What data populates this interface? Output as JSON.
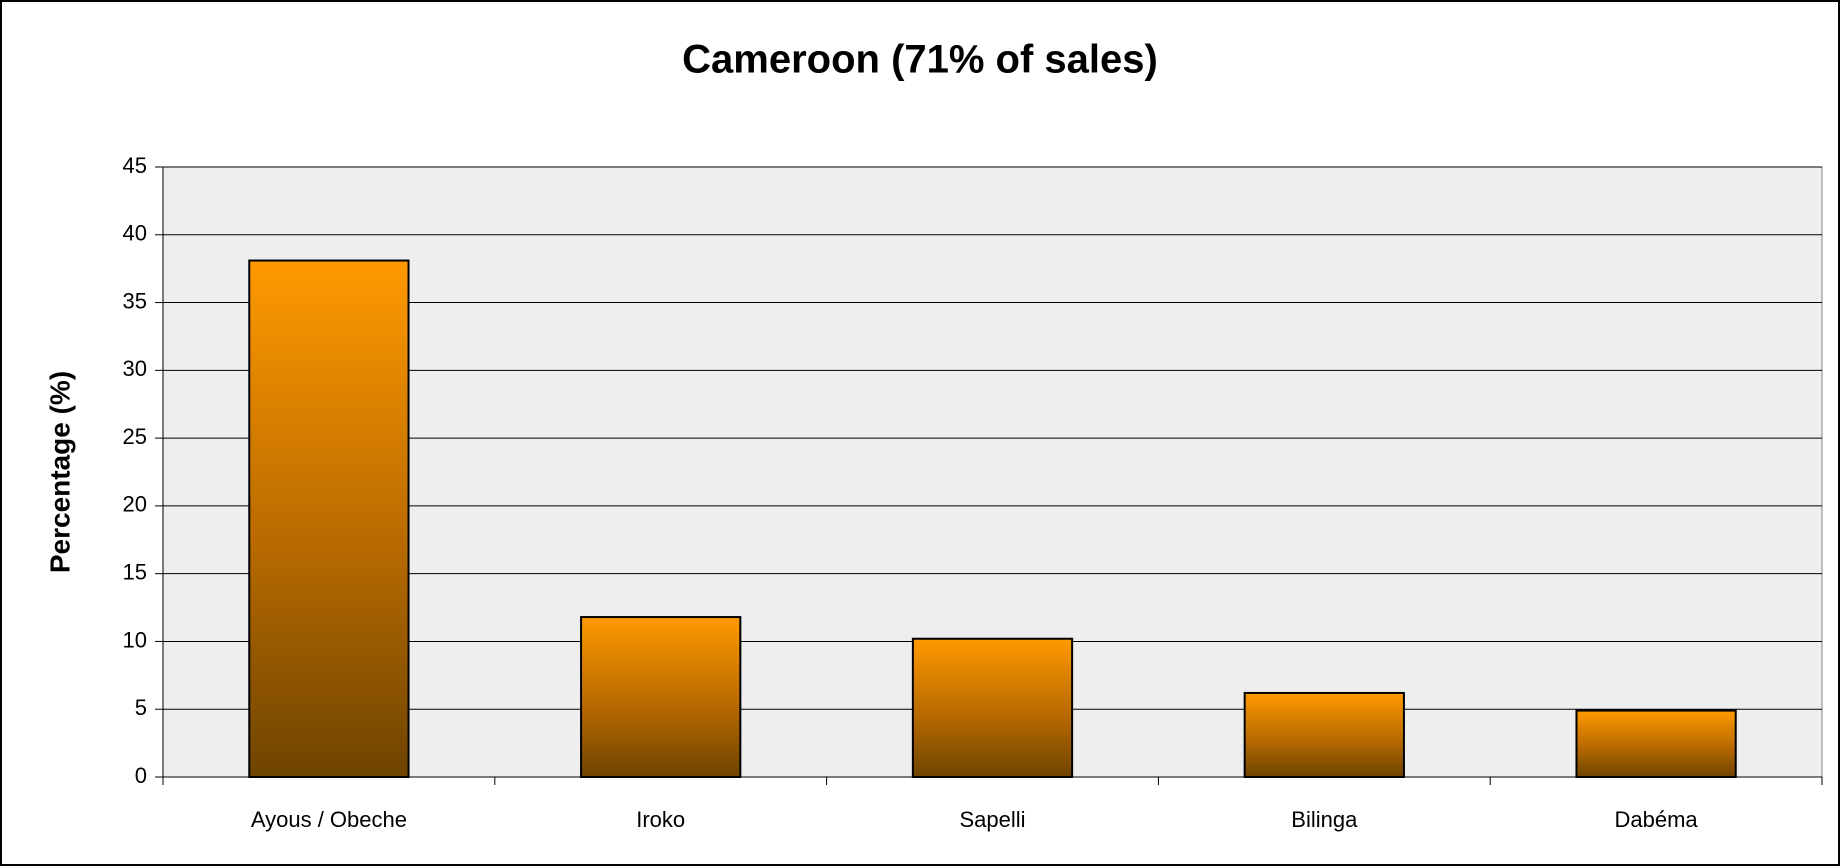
{
  "chart_data": {
    "type": "bar",
    "title": "Cameroon (71% of sales)",
    "y_label": "Percentage (%)",
    "categories": [
      "Ayous / Obeche",
      "Iroko",
      "Sapelli",
      "Bilinga",
      "Dabéma"
    ],
    "values": [
      38.1,
      11.8,
      10.2,
      6.2,
      4.9
    ],
    "color": "#ff9900",
    "ylim": [
      0,
      45
    ],
    "yticks": [
      0,
      5,
      10,
      15,
      20,
      25,
      30,
      35,
      40,
      45
    ],
    "grid": true
  }
}
